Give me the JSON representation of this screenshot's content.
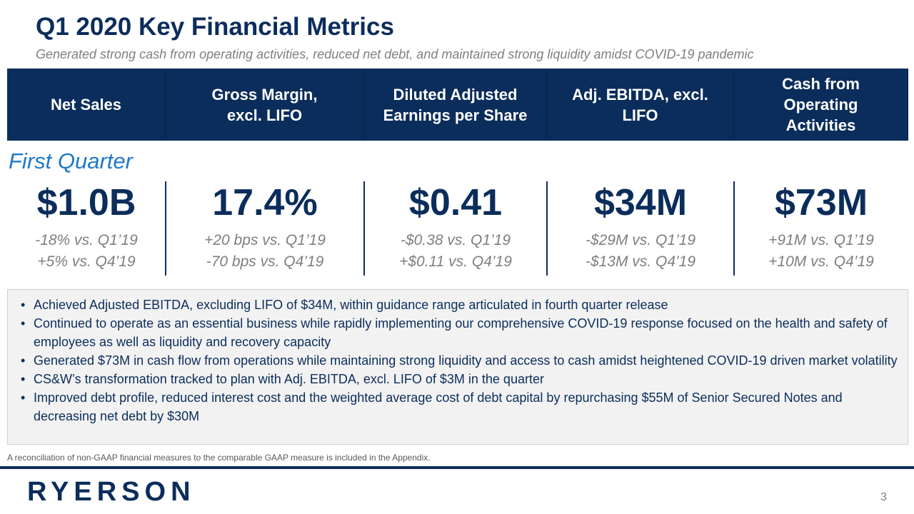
{
  "header": {
    "title": "Q1 2020 Key Financial Metrics",
    "subtitle": "Generated strong cash from operating activities, reduced net debt, and maintained strong liquidity amidst COVID-19 pandemic"
  },
  "period_label": "First Quarter",
  "metrics": [
    {
      "header_lines": [
        "Net Sales"
      ],
      "value": "$1.0B",
      "comparisons": [
        "-18% vs. Q1’19",
        "+5% vs. Q4’19"
      ]
    },
    {
      "header_lines": [
        "Gross Margin,",
        "excl. LIFO"
      ],
      "value": "17.4%",
      "comparisons": [
        "+20 bps vs. Q1’19",
        "-70 bps vs. Q4’19"
      ]
    },
    {
      "header_lines": [
        "Diluted Adjusted",
        "Earnings per Share"
      ],
      "value": "$0.41",
      "comparisons": [
        "-$0.38 vs. Q1’19",
        "+$0.11 vs. Q4’19"
      ]
    },
    {
      "header_lines": [
        "Adj. EBITDA, excl.",
        "LIFO"
      ],
      "value": "$34M",
      "comparisons": [
        "-$29M vs. Q1’19",
        "-$13M vs. Q4’19"
      ]
    },
    {
      "header_lines": [
        "Cash from",
        "Operating",
        "Activities"
      ],
      "value": "$73M",
      "comparisons": [
        "+91M vs. Q1’19",
        "+10M vs. Q4’19"
      ]
    }
  ],
  "bullets": [
    "Achieved Adjusted EBITDA, excluding LIFO of $34M, within guidance range articulated in fourth quarter release",
    "Continued to operate as an essential business while rapidly implementing our comprehensive COVID-19 response focused on the health and safety of employees as well as liquidity and recovery capacity",
    "Generated $73M in cash flow from operations while maintaining strong liquidity and access to cash amidst heightened COVID-19 driven market volatility",
    "CS&W’s transformation tracked to plan with Adj. EBITDA, excl. LIFO of $3M in the quarter",
    "Improved debt profile, reduced interest cost and the weighted average cost of debt capital by repurchasing $55M of Senior Secured Notes and decreasing net debt by $30M"
  ],
  "footnote": "A reconciliation of non-GAAP financial measures to the comparable GAAP measure is included in the Appendix.",
  "logo": "RYERSON",
  "page_number": "3"
}
